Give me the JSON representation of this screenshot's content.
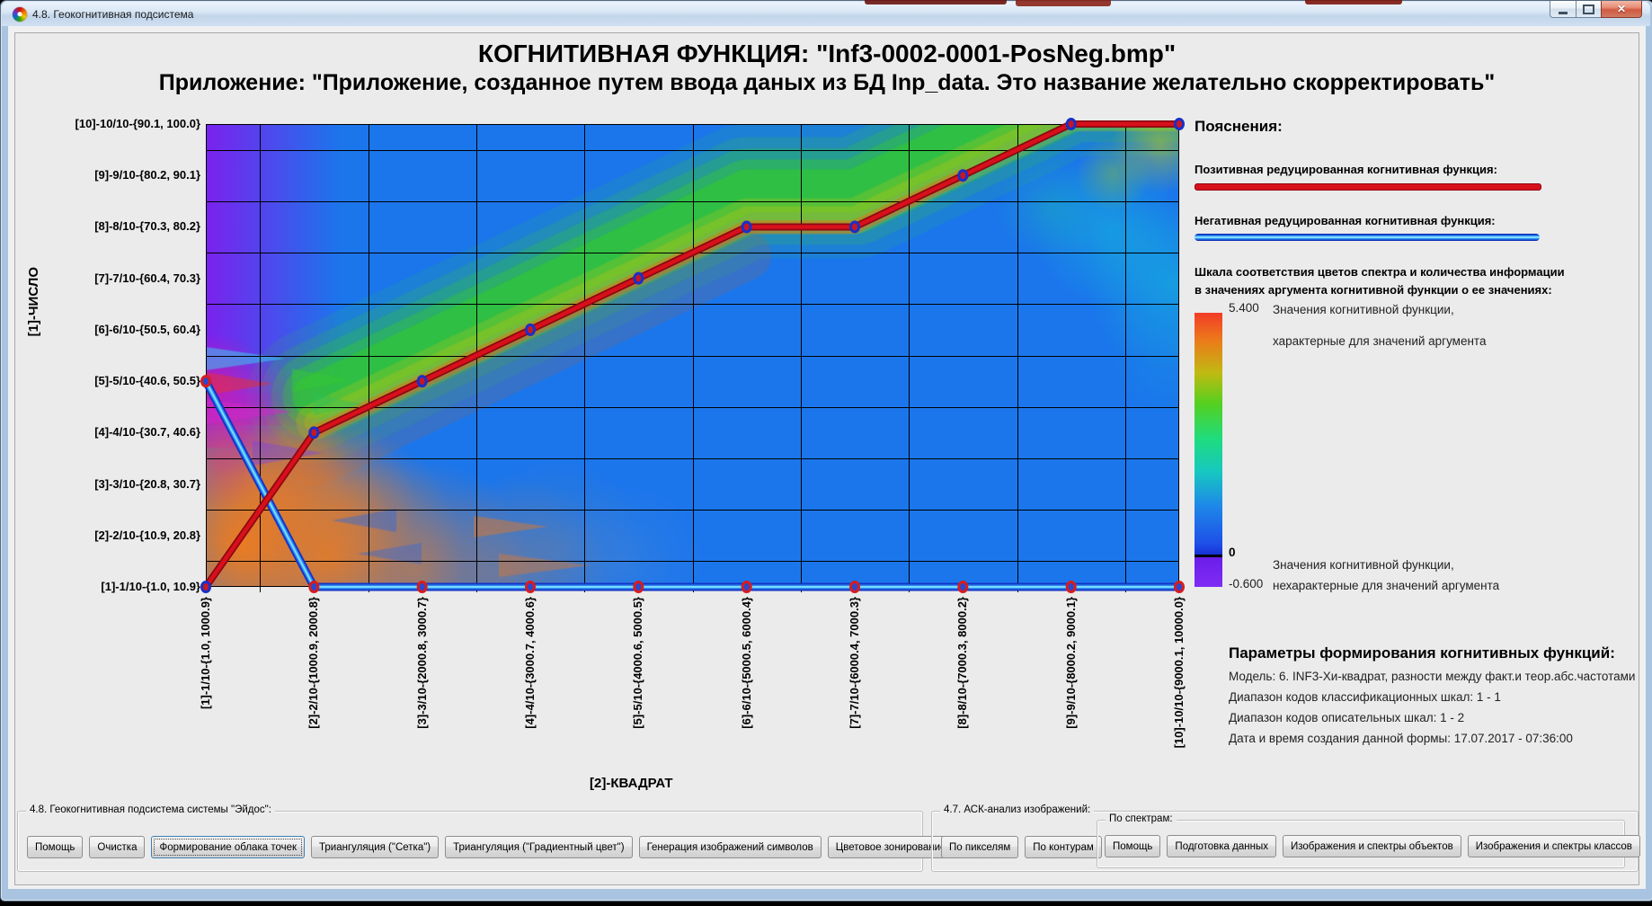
{
  "window": {
    "title": "4.8. Геокогнитивная подсистема",
    "controls": {
      "close_glyph": "✕"
    }
  },
  "header": {
    "title": "КОГНИТИВНАЯ ФУНКЦИЯ: \"Inf3-0002-0001-PosNeg.bmp\"",
    "subtitle": "Приложение: \"Приложение, созданное путем ввода даных из БД Inp_data. Это название желательно скорректировать\""
  },
  "chart_data": {
    "type": "heatmap",
    "title": "КОГНИТИВНАЯ ФУНКЦИЯ: \"Inf3-0002-0001-PosNeg.bmp\"",
    "x_axis_label": "[2]-КВАДРАТ",
    "y_axis_label": "[1]-ЧИСЛО",
    "x_categories": [
      "[1]-1/10-{1.0, 1000.9}",
      "[2]-2/10-{1000.9, 2000.8}",
      "[3]-3/10-{2000.8, 3000.7}",
      "[4]-4/10-{3000.7, 4000.6}",
      "[5]-5/10-{4000.6, 5000.5}",
      "[6]-6/10-{5000.5, 6000.4}",
      "[7]-7/10-{6000.4, 7000.3}",
      "[8]-8/10-{7000.3, 8000.2}",
      "[9]-9/10-{8000.2, 9000.1}",
      "[10]-10/10-{9000.1, 10000.0}"
    ],
    "y_categories_top_to_bottom": [
      "[10]-10/10-{90.1, 100.0}",
      "[9]-9/10-{80.2, 90.1}",
      "[8]-8/10-{70.3, 80.2}",
      "[7]-7/10-{60.4, 70.3}",
      "[6]-6/10-{50.5, 60.4}",
      "[5]-5/10-{40.6, 50.5}",
      "[4]-4/10-{30.7, 40.6}",
      "[3]-3/10-{20.8, 30.7}",
      "[2]-2/10-{10.9, 20.8}",
      "[1]-1/10-{1.0, 10.9}"
    ],
    "series": [
      {
        "name": "Позитивная редуцированная когнитивная функция",
        "color": "#d8101c",
        "edge_color": "#8c0810",
        "marker_ring_color": "#1830c8",
        "class_by_category": [
          1,
          4,
          5,
          6,
          7,
          8,
          8,
          9,
          10,
          10
        ]
      },
      {
        "name": "Негативная редуцированная когнитивная функция",
        "color": "#1534c8",
        "mid_color": "#2f8ef2",
        "core_color": "#7adcff",
        "marker_ring_color": "#d81c1c",
        "class_by_category": [
          5,
          1,
          1,
          1,
          1,
          1,
          1,
          1,
          1,
          1
        ]
      }
    ],
    "colorbar": {
      "max_label": "5.400",
      "zero_label": "0",
      "min_label": "-0.600",
      "stops": [
        {
          "pos": 0,
          "color": "#f23c28"
        },
        {
          "pos": 0.1,
          "color": "#ec7a1a"
        },
        {
          "pos": 0.22,
          "color": "#c0ba12"
        },
        {
          "pos": 0.33,
          "color": "#55d01e"
        },
        {
          "pos": 0.46,
          "color": "#1edc7e"
        },
        {
          "pos": 0.58,
          "color": "#16c8c0"
        },
        {
          "pos": 0.7,
          "color": "#1e8ae8"
        },
        {
          "pos": 0.84,
          "color": "#1e50e8"
        },
        {
          "pos": 0.882,
          "color": "#1830d8"
        },
        {
          "pos": 0.888,
          "color": "#6a1ee8"
        },
        {
          "pos": 1,
          "color": "#7e2cf4"
        }
      ]
    },
    "background_regions": [
      {
        "area": "base",
        "color": "#1b76ec"
      },
      {
        "area": "left-column",
        "color": "#7b22ee"
      },
      {
        "area": "left-middle-magenta",
        "color": "#d41aa8"
      },
      {
        "area": "bottom-left",
        "color": "#f07c1e"
      },
      {
        "area": "diagonal-band",
        "color": "#35d31b"
      },
      {
        "area": "band-yellow-edge",
        "color": "#bcc414"
      },
      {
        "area": "band-orange-fringe",
        "color": "#e86a14"
      },
      {
        "area": "top-right-teal",
        "color": "#14bed8"
      }
    ],
    "grid": true
  },
  "legend": {
    "heading": "Пояснения:",
    "positive_label": "Позитивная редуцированная когнитивная функция:",
    "negative_label": "Негативная редуцированная когнитивная функция:",
    "scale_caption_line1": "Шкала соответствия цветов спектра и количества информации",
    "scale_caption_line2": "в значениях аргумента когнитивной функции о ее значениях:",
    "characteristic_line1": "Значения когнитивной функции,",
    "characteristic_line2": "характерные для значений аргумента",
    "uncharacteristic_line1": "Значения когнитивной функции,",
    "uncharacteristic_line2": "нехарактерные для значений аргумента"
  },
  "params": {
    "heading": "Параметры формирования когнитивных функций:",
    "lines": [
      "Модель: 6. INF3-Хи-квадрат, разности между факт.и теор.абс.частотами",
      "Диапазон кодов классификационных шкал: 1 - 1",
      "Диапазон кодов описательных шкал: 1 - 2",
      "Дата и время создания данной формы: 17.07.2017 - 07:36:00"
    ]
  },
  "toolbars": {
    "geo": {
      "label": "4.8. Геокогнитивная подсистема системы \"Эйдос\":",
      "buttons": [
        {
          "label": "Помощь"
        },
        {
          "label": "Очистка"
        },
        {
          "label": "Формирование облака точек",
          "focused": true
        },
        {
          "label": "Триангуляция (\"Сетка\")"
        },
        {
          "label": "Триангуляция (\"Градиентный цвет\")"
        },
        {
          "label": "Генерация изображений символов"
        },
        {
          "label": "Цветовое зонирование"
        }
      ]
    },
    "ask": {
      "label": "4.7. АСК-анализ изображений:",
      "buttons": [
        {
          "label": "По пикселям"
        },
        {
          "label": "По контурам"
        }
      ],
      "spectra": {
        "label": "По спектрам:",
        "buttons": [
          {
            "label": "Помощь"
          },
          {
            "label": "Подготовка данных"
          },
          {
            "label": "Изображения и спектры объектов"
          },
          {
            "label": "Изображения и спектры классов"
          }
        ]
      }
    }
  }
}
